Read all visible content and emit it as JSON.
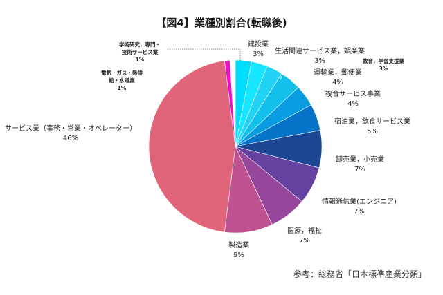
{
  "chart_data": {
    "type": "pie",
    "title": "【図4】業種別割合(転職後)",
    "slices": [
      {
        "label": "建設業",
        "value_label": "3%",
        "value": 3,
        "color": "#00dcff"
      },
      {
        "label": "生活関連サービス業，娯楽業",
        "value_label": "3%",
        "value": 3,
        "color": "#16e6ff"
      },
      {
        "label": "教育，学習支援業",
        "value_label": "3%",
        "value": 3,
        "color": "#22d2f4"
      },
      {
        "label": "運輸業，郵便業",
        "value_label": "4%",
        "value": 4,
        "color": "#12c0ec"
      },
      {
        "label": "複合サービス事業",
        "value_label": "4%",
        "value": 4,
        "color": "#089ce0"
      },
      {
        "label": "宿泊業，飲食サービス業",
        "value_label": "5%",
        "value": 5,
        "color": "#0674c8"
      },
      {
        "label": "卸売業，小売業",
        "value_label": "7%",
        "value": 7,
        "color": "#1b4795"
      },
      {
        "label": "情報通信業(エンジニア)",
        "value_label": "7%",
        "value": 7,
        "color": "#6541a0"
      },
      {
        "label": "医療，福祉",
        "value_label": "7%",
        "value": 7,
        "color": "#96479c"
      },
      {
        "label": "製造業",
        "value_label": "9%",
        "value": 9,
        "color": "#bf5290"
      },
      {
        "label": "サービス業（事務・営業・オペレーター）",
        "value_label": "46%",
        "value": 46,
        "color": "#e0657a"
      },
      {
        "label": "電気・ガス・熱供給・水道業",
        "label_lines": [
          "電気・ガス・熱供",
          "給・水道業"
        ],
        "value_label": "1%",
        "value": 1,
        "color": "#ee10c6"
      },
      {
        "label": "学術研究，専門・技術サービス業",
        "label_lines": [
          "学術研究，専門・",
          "技術サービス業"
        ],
        "value_label": "1%",
        "value": 1,
        "color": "#ffffff"
      }
    ]
  },
  "source_note": "参考：総務省「日本標準産業分類」"
}
